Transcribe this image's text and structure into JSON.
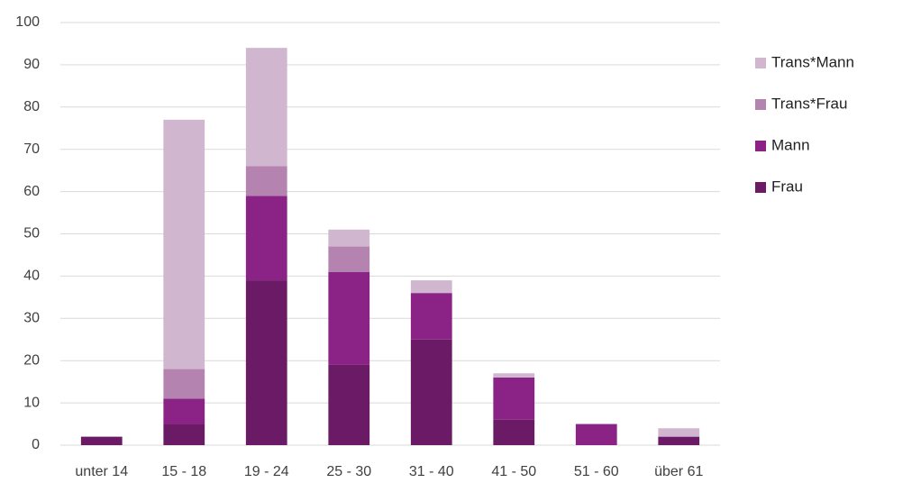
{
  "chart_data": {
    "type": "stacked_bar",
    "categories": [
      "unter 14",
      "15 - 18",
      "19 - 24",
      "25 - 30",
      "31 - 40",
      "41 - 50",
      "51 - 60",
      "über 61"
    ],
    "series": [
      {
        "name": "Frau",
        "color": "#6b1a66",
        "values": [
          2,
          5,
          39,
          19,
          25,
          6,
          0,
          2
        ]
      },
      {
        "name": "Mann",
        "color": "#8a2385",
        "values": [
          0,
          6,
          20,
          22,
          11,
          10,
          5,
          0
        ]
      },
      {
        "name": "Trans*Frau",
        "color": "#b483b0",
        "values": [
          0,
          7,
          7,
          6,
          0,
          0,
          0,
          0
        ]
      },
      {
        "name": "Trans*Mann",
        "color": "#d0b6cf",
        "values": [
          0,
          59,
          28,
          4,
          3,
          1,
          0,
          2
        ]
      }
    ],
    "ylim": [
      0,
      100
    ],
    "yticks": [
      0,
      10,
      20,
      30,
      40,
      50,
      60,
      70,
      80,
      90,
      100
    ],
    "grid": true,
    "legend": "right"
  }
}
